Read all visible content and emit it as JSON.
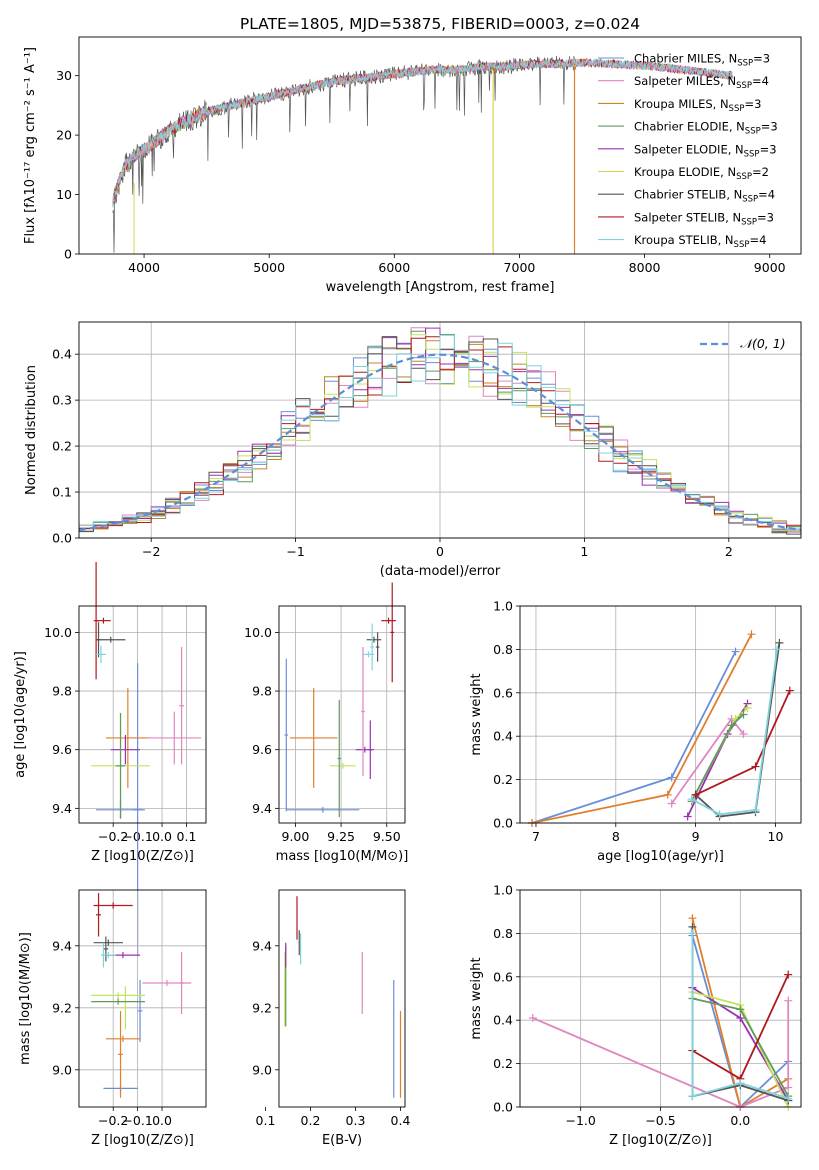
{
  "figure_title": "PLATE=1805, MJD=53875, FIBERID=0003, z=0.024",
  "colors": {
    "s0": "#6a8ed6",
    "s1": "#e07e2e",
    "s2": "#c7852c",
    "s3": "#5f9a5f",
    "s4": "#9a30b0",
    "s5": "#d9d44c",
    "s6": "#555555",
    "s7": "#b0191e",
    "s8": "#7fd3dd",
    "pink": "#e086c0",
    "lime": "#c4e35a",
    "dashed": "#5b8fd6"
  },
  "chart_data": [
    {
      "type": "line",
      "title": "PLATE=1805, MJD=53875, FIBERID=0003, z=0.024",
      "xlabel": "wavelength [Angstrom, rest frame]",
      "ylabel": "Flux [fλ10⁻¹⁷ erg cm⁻² s⁻¹ A⁻¹]",
      "xlim": [
        3480,
        9250
      ],
      "ylim": [
        0,
        36.5
      ],
      "xticks": [
        "4000",
        "5000",
        "6000",
        "7000",
        "8000",
        "9000"
      ],
      "yticks": [
        "0",
        "10",
        "20",
        "30"
      ],
      "legend_position": "upper right",
      "grid": false,
      "series": [
        {
          "name": "Chabrier MILES, N_SSP=3",
          "legend_main": "Chabrier MILES, N",
          "legend_sub": "SSP",
          "legend_tail": "=3",
          "color": "s0"
        },
        {
          "name": "Salpeter MILES, N_SSP=4",
          "legend_main": "Salpeter MILES, N",
          "legend_sub": "SSP",
          "legend_tail": "=4",
          "color": "pink"
        },
        {
          "name": "Kroupa MILES, N_SSP=3",
          "legend_main": "Kroupa MILES, N",
          "legend_sub": "SSP",
          "legend_tail": "=3",
          "color": "s2"
        },
        {
          "name": "Chabrier ELODIE, N_SSP=3",
          "legend_main": "Chabrier ELODIE, N",
          "legend_sub": "SSP",
          "legend_tail": "=3",
          "color": "s3"
        },
        {
          "name": "Salpeter ELODIE, N_SSP=3",
          "legend_main": "Salpeter ELODIE, N",
          "legend_sub": "SSP",
          "legend_tail": "=3",
          "color": "s4"
        },
        {
          "name": "Kroupa ELODIE, N_SSP=2",
          "legend_main": "Kroupa ELODIE, N",
          "legend_sub": "SSP",
          "legend_tail": "=2",
          "color": "s5"
        },
        {
          "name": "Chabrier STELIB, N_SSP=4",
          "legend_main": "Chabrier STELIB, N",
          "legend_sub": "SSP",
          "legend_tail": "=4",
          "color": "s6"
        },
        {
          "name": "Salpeter STELIB, N_SSP=3",
          "legend_main": "Salpeter STELIB, N",
          "legend_sub": "SSP",
          "legend_tail": "=3",
          "color": "s7"
        },
        {
          "name": "Kroupa STELIB, N_SSP=4",
          "legend_main": "Kroupa STELIB, N",
          "legend_sub": "SSP",
          "legend_tail": "=4",
          "color": "s8"
        }
      ],
      "continuum": [
        [
          3750,
          9
        ],
        [
          3850,
          15
        ],
        [
          3950,
          17
        ],
        [
          4050,
          18
        ],
        [
          4150,
          20
        ],
        [
          4300,
          22
        ],
        [
          4500,
          24
        ],
        [
          4700,
          25
        ],
        [
          4900,
          26
        ],
        [
          5100,
          27
        ],
        [
          5300,
          28
        ],
        [
          5500,
          29
        ],
        [
          5700,
          29.5
        ],
        [
          5900,
          30
        ],
        [
          6100,
          30.5
        ],
        [
          6300,
          31
        ],
        [
          6500,
          31
        ],
        [
          6700,
          31.5
        ],
        [
          6900,
          31.5
        ],
        [
          7100,
          32
        ],
        [
          7300,
          32
        ],
        [
          7500,
          32.2
        ],
        [
          7700,
          32
        ],
        [
          7900,
          31.8
        ],
        [
          8100,
          31.5
        ],
        [
          8300,
          31
        ],
        [
          8500,
          30.5
        ],
        [
          8700,
          30
        ]
      ],
      "model_end": 8700,
      "data_end": 7450
    },
    {
      "type": "line",
      "xlabel": "(data-model)/error",
      "ylabel": "Normed distribution",
      "xlim": [
        -2.5,
        2.5
      ],
      "ylim": [
        0,
        0.47
      ],
      "xticks": [
        "−2",
        "−1",
        "0",
        "1",
        "2"
      ],
      "yticks": [
        "0.0",
        "0.1",
        "0.2",
        "0.3",
        "0.4"
      ],
      "grid": true,
      "legend": "𝒩(0, 1)",
      "legend_position": "upper right"
    },
    {
      "type": "scatter",
      "xlabel": "Z [log10(Z/Z⊙)]",
      "ylabel": "age  [log10(age/yr)]",
      "xlim": [
        -0.34,
        0.18
      ],
      "ylim": [
        9.35,
        10.09
      ],
      "xticks": [
        "−0.2",
        "−0.1",
        "0.0",
        "0.1"
      ],
      "yticks": [
        "9.4",
        "9.6",
        "9.8",
        "10.0"
      ],
      "grid": true,
      "points": [
        {
          "x": -0.17,
          "y": 9.395,
          "xerr": 0.1,
          "yerr": 0.03,
          "color": "s0"
        },
        {
          "x": -0.1,
          "y": 9.395,
          "xerr": 0.02,
          "yerr": 0.5,
          "color": "s0"
        },
        {
          "x": -0.14,
          "y": 9.64,
          "xerr": 0.09,
          "yerr": 0.17,
          "color": "s1"
        },
        {
          "x": -0.15,
          "y": 9.6,
          "xerr": 0.06,
          "yerr": 0.05,
          "color": "s4"
        },
        {
          "x": -0.17,
          "y": 9.545,
          "xerr": 0.12,
          "yerr": 0.18,
          "color": "lime"
        },
        {
          "x": -0.17,
          "y": 9.545,
          "xerr": 0.02,
          "yerr": 0.18,
          "color": "s3"
        },
        {
          "x": 0.05,
          "y": 9.64,
          "xerr": 0.11,
          "yerr": 0.09,
          "color": "pink"
        },
        {
          "x": 0.08,
          "y": 9.75,
          "xerr": 0.01,
          "yerr": 0.2,
          "color": "pink"
        },
        {
          "x": -0.24,
          "y": 10.04,
          "xerr": 0.03,
          "yerr": 0.01,
          "color": "s7"
        },
        {
          "x": -0.27,
          "y": 10.04,
          "xerr": 0.01,
          "yerr": 0.2,
          "color": "s7"
        },
        {
          "x": -0.21,
          "y": 9.975,
          "xerr": 0.06,
          "yerr": 0.01,
          "color": "s6"
        },
        {
          "x": -0.26,
          "y": 9.975,
          "xerr": 0.01,
          "yerr": 0.06,
          "color": "s6"
        },
        {
          "x": -0.25,
          "y": 9.925,
          "xerr": 0.02,
          "yerr": 0.03,
          "color": "s8"
        }
      ]
    },
    {
      "type": "scatter",
      "xlabel": "mass [log10(M/M⊙)]",
      "ylabel": "",
      "xlim": [
        8.91,
        9.6
      ],
      "ylim": [
        9.35,
        10.09
      ],
      "xticks": [
        "9.00",
        "9.25",
        "9.50"
      ],
      "yticks": [
        "9.4",
        "9.6",
        "9.8",
        "10.0"
      ],
      "grid": true,
      "points": [
        {
          "x": 9.15,
          "y": 9.395,
          "xerr": 0.2,
          "yerr": 0.01,
          "color": "s0"
        },
        {
          "x": 8.95,
          "y": 9.65,
          "xerr": 0.01,
          "yerr": 0.26,
          "color": "s0"
        },
        {
          "x": 9.1,
          "y": 9.64,
          "xerr": 0.13,
          "yerr": 0.17,
          "color": "s1"
        },
        {
          "x": 9.38,
          "y": 9.6,
          "xerr": 0.05,
          "yerr": 0.01,
          "color": "s4"
        },
        {
          "x": 9.41,
          "y": 9.6,
          "xerr": 0.01,
          "yerr": 0.1,
          "color": "s4"
        },
        {
          "x": 9.26,
          "y": 9.545,
          "xerr": 0.07,
          "yerr": 0.01,
          "color": "lime"
        },
        {
          "x": 9.24,
          "y": 9.57,
          "xerr": 0.01,
          "yerr": 0.2,
          "color": "s3"
        },
        {
          "x": 9.37,
          "y": 9.73,
          "xerr": 0.01,
          "yerr": 0.22,
          "color": "pink"
        },
        {
          "x": 9.51,
          "y": 10.04,
          "xerr": 0.04,
          "yerr": 0.01,
          "color": "s7"
        },
        {
          "x": 9.53,
          "y": 10.0,
          "xerr": 0.01,
          "yerr": 0.17,
          "color": "s7"
        },
        {
          "x": 9.43,
          "y": 9.975,
          "xerr": 0.04,
          "yerr": 0.01,
          "color": "s6"
        },
        {
          "x": 9.45,
          "y": 9.95,
          "xerr": 0.01,
          "yerr": 0.05,
          "color": "s6"
        },
        {
          "x": 9.4,
          "y": 9.925,
          "xerr": 0.03,
          "yerr": 0.01,
          "color": "s8"
        },
        {
          "x": 9.42,
          "y": 9.95,
          "xerr": 0.01,
          "yerr": 0.08,
          "color": "s8"
        }
      ]
    },
    {
      "type": "line",
      "xlabel": "age  [log10(age/yr)]",
      "ylabel": "mass weight",
      "xlim": [
        6.8,
        10.32
      ],
      "ylim": [
        0,
        1
      ],
      "xticks": [
        "7",
        "8",
        "9",
        "10"
      ],
      "yticks": [
        "0.0",
        "0.2",
        "0.4",
        "0.6",
        "0.8",
        "1.0"
      ],
      "grid": true,
      "series": [
        {
          "color": "s0",
          "x": [
            6.95,
            8.7,
            9.5
          ],
          "y": [
            0.0,
            0.21,
            0.79
          ]
        },
        {
          "color": "s1",
          "x": [
            6.95,
            8.65,
            9.7
          ],
          "y": [
            0.0,
            0.13,
            0.87
          ]
        },
        {
          "color": "pink",
          "x": [
            8.7,
            9.45,
            9.6
          ],
          "y": [
            0.09,
            0.48,
            0.41
          ]
        },
        {
          "color": "s4",
          "x": [
            8.9,
            9.4,
            9.65
          ],
          "y": [
            0.03,
            0.41,
            0.55
          ]
        },
        {
          "color": "lime",
          "x": [
            8.95,
            9.5,
            9.65
          ],
          "y": [
            0.1,
            0.48,
            0.53
          ]
        },
        {
          "color": "s3",
          "x": [
            8.95,
            9.45,
            9.6
          ],
          "y": [
            0.1,
            0.45,
            0.5
          ]
        },
        {
          "color": "s6",
          "x": [
            9.0,
            9.3,
            9.75,
            10.05
          ],
          "y": [
            0.13,
            0.03,
            0.05,
            0.83
          ]
        },
        {
          "color": "s7",
          "x": [
            9.0,
            9.75,
            10.18
          ],
          "y": [
            0.13,
            0.26,
            0.61
          ]
        },
        {
          "color": "s8",
          "x": [
            8.95,
            9.3,
            9.75,
            10.02
          ],
          "y": [
            0.11,
            0.04,
            0.06,
            0.8
          ]
        }
      ]
    },
    {
      "type": "scatter",
      "xlabel": "Z [log10(Z/Z⊙)]",
      "ylabel": "mass [log10(M/M⊙)]",
      "xlim": [
        -0.34,
        0.18
      ],
      "ylim": [
        8.88,
        9.58
      ],
      "xticks": [
        "−0.2",
        "−0.1",
        "0.0"
      ],
      "yticks": [
        "9.0",
        "9.2",
        "9.4"
      ],
      "grid": true,
      "points": [
        {
          "x": -0.17,
          "y": 8.94,
          "xerr": 0.07,
          "yerr": 0.01,
          "color": "s0"
        },
        {
          "x": -0.09,
          "y": 9.19,
          "xerr": 0.01,
          "yerr": 0.1,
          "color": "s0"
        },
        {
          "x": -0.16,
          "y": 9.1,
          "xerr": 0.07,
          "yerr": 0.01,
          "color": "s1"
        },
        {
          "x": -0.17,
          "y": 9.05,
          "xerr": 0.01,
          "yerr": 0.14,
          "color": "s1"
        },
        {
          "x": -0.18,
          "y": 9.24,
          "xerr": 0.11,
          "yerr": 0.01,
          "color": "lime"
        },
        {
          "x": -0.15,
          "y": 9.2,
          "xerr": 0.01,
          "yerr": 0.07,
          "color": "lime"
        },
        {
          "x": -0.18,
          "y": 9.22,
          "xerr": 0.11,
          "yerr": 0.01,
          "color": "s3"
        },
        {
          "x": -0.16,
          "y": 9.37,
          "xerr": 0.07,
          "yerr": 0.01,
          "color": "s4"
        },
        {
          "x": 0.02,
          "y": 9.28,
          "xerr": 0.1,
          "yerr": 0.01,
          "color": "pink"
        },
        {
          "x": 0.08,
          "y": 9.28,
          "xerr": 0.01,
          "yerr": 0.1,
          "color": "pink"
        },
        {
          "x": -0.2,
          "y": 9.53,
          "xerr": 0.08,
          "yerr": 0.01,
          "color": "s7"
        },
        {
          "x": -0.26,
          "y": 9.5,
          "xerr": 0.01,
          "yerr": 0.07,
          "color": "s7"
        },
        {
          "x": -0.22,
          "y": 9.41,
          "xerr": 0.06,
          "yerr": 0.01,
          "color": "s6"
        },
        {
          "x": -0.23,
          "y": 9.39,
          "xerr": 0.01,
          "yerr": 0.04,
          "color": "s6"
        },
        {
          "x": -0.22,
          "y": 9.37,
          "xerr": 0.03,
          "yerr": 0.01,
          "color": "s8"
        },
        {
          "x": -0.24,
          "y": 9.37,
          "xerr": 0.01,
          "yerr": 0.04,
          "color": "s8"
        }
      ]
    },
    {
      "type": "scatter",
      "xlabel": "E(B-V)",
      "ylabel": "",
      "xlim": [
        0.13,
        0.41
      ],
      "ylim": [
        8.88,
        9.58
      ],
      "xticks": [
        "0.1",
        "0.2",
        "0.3",
        "0.4"
      ],
      "yticks": [
        "9.0",
        "9.2",
        "9.4"
      ],
      "grid": false,
      "points": [
        {
          "x": 0.385,
          "y": 9.1,
          "xerr": 0.0,
          "yerr": 0.19,
          "color": "s0"
        },
        {
          "x": 0.4,
          "y": 9.05,
          "xerr": 0.0,
          "yerr": 0.14,
          "color": "s1"
        },
        {
          "x": 0.315,
          "y": 9.28,
          "xerr": 0.0,
          "yerr": 0.1,
          "color": "pink"
        },
        {
          "x": 0.143,
          "y": 9.26,
          "xerr": 0.0,
          "yerr": 0.12,
          "color": "lime"
        },
        {
          "x": 0.145,
          "y": 9.27,
          "xerr": 0.0,
          "yerr": 0.13,
          "color": "s3"
        },
        {
          "x": 0.145,
          "y": 9.37,
          "xerr": 0.0,
          "yerr": 0.04,
          "color": "s4"
        },
        {
          "x": 0.17,
          "y": 9.49,
          "xerr": 0.0,
          "yerr": 0.07,
          "color": "s7"
        },
        {
          "x": 0.175,
          "y": 9.41,
          "xerr": 0.0,
          "yerr": 0.04,
          "color": "s6"
        },
        {
          "x": 0.178,
          "y": 9.39,
          "xerr": 0.0,
          "yerr": 0.05,
          "color": "s8"
        }
      ]
    },
    {
      "type": "line",
      "xlabel": "Z [log10(Z/Z⊙)]",
      "ylabel": "mass weight",
      "xlim": [
        -1.38,
        0.38
      ],
      "ylim": [
        0,
        1
      ],
      "xticks": [
        "−1.0",
        "−0.5",
        "0.0"
      ],
      "yticks": [
        "0.0",
        "0.2",
        "0.4",
        "0.6",
        "0.8",
        "1.0"
      ],
      "grid": true,
      "series": [
        {
          "color": "s0",
          "x": [
            -0.3,
            0.0,
            0.3
          ],
          "y": [
            0.79,
            0.0,
            0.21
          ]
        },
        {
          "color": "s1",
          "x": [
            -0.3,
            0.0,
            0.3
          ],
          "y": [
            0.87,
            0.0,
            0.13
          ]
        },
        {
          "color": "pink",
          "x": [
            -1.3,
            0.0,
            0.3,
            0.3
          ],
          "y": [
            0.41,
            0.0,
            0.09,
            0.49
          ]
        },
        {
          "color": "s4",
          "x": [
            -0.3,
            0.0,
            0.3
          ],
          "y": [
            0.55,
            0.41,
            0.03
          ]
        },
        {
          "color": "lime",
          "x": [
            -0.3,
            0.0,
            0.3
          ],
          "y": [
            0.53,
            0.47,
            0.0
          ]
        },
        {
          "color": "s3",
          "x": [
            -0.3,
            0.0,
            0.3
          ],
          "y": [
            0.5,
            0.45,
            0.05
          ]
        },
        {
          "color": "s6",
          "x": [
            -0.3,
            -0.3,
            0.0,
            0.3
          ],
          "y": [
            0.83,
            0.05,
            0.1,
            0.03
          ]
        },
        {
          "color": "s7",
          "x": [
            -0.3,
            0.0,
            0.3
          ],
          "y": [
            0.26,
            0.13,
            0.61
          ]
        },
        {
          "color": "s8",
          "x": [
            -0.3,
            -0.3,
            0.0,
            0.3
          ],
          "y": [
            0.8,
            0.05,
            0.11,
            0.04
          ]
        }
      ]
    }
  ]
}
